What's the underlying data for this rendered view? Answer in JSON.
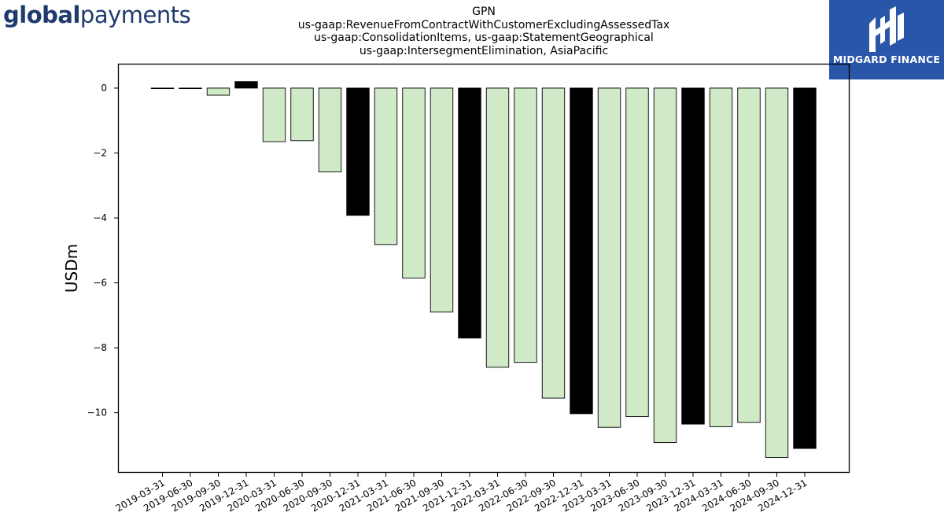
{
  "logo_left": {
    "part1": "global",
    "part2": "payments"
  },
  "logo_right": {
    "name": "MIDGARD FINANCE"
  },
  "colors": {
    "highlight": "#000000",
    "normal": "#d0eac8",
    "edge": "#000000",
    "brand_blue": "#2a56a9",
    "brand_text": "#1f3a6e"
  },
  "chart_data": {
    "type": "bar",
    "title_lines": [
      "GPN",
      "us-gaap:RevenueFromContractWithCustomerExcludingAssessedTax",
      "us-gaap:ConsolidationItems, us-gaap:StatementGeographical",
      "us-gaap:IntersegmentElimination, AsiaPacific"
    ],
    "xlabel": "",
    "ylabel": "USDm",
    "ylim": [
      -11.85,
      0.75
    ],
    "yticks": [
      0,
      -2,
      -4,
      -6,
      -8,
      -10
    ],
    "ytick_labels": [
      "0",
      "−2",
      "−4",
      "−6",
      "−8",
      "−10"
    ],
    "grid": false,
    "categories": [
      "2019-03-31",
      "2019-06-30",
      "2019-09-30",
      "2019-12-31",
      "2020-03-31",
      "2020-06-30",
      "2020-09-30",
      "2020-12-31",
      "2021-03-31",
      "2021-06-30",
      "2021-09-30",
      "2021-12-31",
      "2022-03-31",
      "2022-06-30",
      "2022-09-30",
      "2022-12-31",
      "2023-03-31",
      "2023-06-30",
      "2023-09-30",
      "2023-12-31",
      "2024-03-31",
      "2024-06-30",
      "2024-09-30",
      "2024-12-31"
    ],
    "values": [
      0.0,
      0.0,
      -0.22,
      0.2,
      -1.65,
      -1.62,
      -2.58,
      -3.92,
      -4.82,
      -5.85,
      -6.9,
      -7.7,
      -8.6,
      -8.45,
      -9.55,
      -10.03,
      -10.45,
      -10.12,
      -10.92,
      -10.35,
      -10.43,
      -10.3,
      -11.38,
      -11.1
    ],
    "highlighted": [
      false,
      false,
      false,
      true,
      false,
      false,
      false,
      true,
      false,
      false,
      false,
      true,
      false,
      false,
      false,
      true,
      false,
      false,
      false,
      true,
      false,
      false,
      false,
      true
    ]
  }
}
